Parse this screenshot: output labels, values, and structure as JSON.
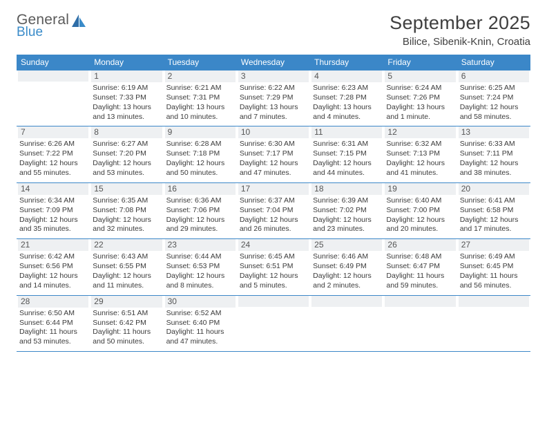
{
  "logo": {
    "general": "General",
    "blue": "Blue"
  },
  "header": {
    "title": "September 2025",
    "location": "Bilice, Sibenik-Knin, Croatia"
  },
  "colors": {
    "header_bg": "#3b87c8",
    "daynum_bg": "#eef0f2",
    "text": "#333333",
    "border": "#3b87c8",
    "logo_gray": "#5a5a5a",
    "logo_blue": "#3a8bc9"
  },
  "weekdays": [
    "Sunday",
    "Monday",
    "Tuesday",
    "Wednesday",
    "Thursday",
    "Friday",
    "Saturday"
  ],
  "weeks": [
    [
      {
        "day": "",
        "sunrise": "",
        "sunset": "",
        "daylight": ""
      },
      {
        "day": "1",
        "sunrise": "Sunrise: 6:19 AM",
        "sunset": "Sunset: 7:33 PM",
        "daylight": "Daylight: 13 hours and 13 minutes."
      },
      {
        "day": "2",
        "sunrise": "Sunrise: 6:21 AM",
        "sunset": "Sunset: 7:31 PM",
        "daylight": "Daylight: 13 hours and 10 minutes."
      },
      {
        "day": "3",
        "sunrise": "Sunrise: 6:22 AM",
        "sunset": "Sunset: 7:29 PM",
        "daylight": "Daylight: 13 hours and 7 minutes."
      },
      {
        "day": "4",
        "sunrise": "Sunrise: 6:23 AM",
        "sunset": "Sunset: 7:28 PM",
        "daylight": "Daylight: 13 hours and 4 minutes."
      },
      {
        "day": "5",
        "sunrise": "Sunrise: 6:24 AM",
        "sunset": "Sunset: 7:26 PM",
        "daylight": "Daylight: 13 hours and 1 minute."
      },
      {
        "day": "6",
        "sunrise": "Sunrise: 6:25 AM",
        "sunset": "Sunset: 7:24 PM",
        "daylight": "Daylight: 12 hours and 58 minutes."
      }
    ],
    [
      {
        "day": "7",
        "sunrise": "Sunrise: 6:26 AM",
        "sunset": "Sunset: 7:22 PM",
        "daylight": "Daylight: 12 hours and 55 minutes."
      },
      {
        "day": "8",
        "sunrise": "Sunrise: 6:27 AM",
        "sunset": "Sunset: 7:20 PM",
        "daylight": "Daylight: 12 hours and 53 minutes."
      },
      {
        "day": "9",
        "sunrise": "Sunrise: 6:28 AM",
        "sunset": "Sunset: 7:18 PM",
        "daylight": "Daylight: 12 hours and 50 minutes."
      },
      {
        "day": "10",
        "sunrise": "Sunrise: 6:30 AM",
        "sunset": "Sunset: 7:17 PM",
        "daylight": "Daylight: 12 hours and 47 minutes."
      },
      {
        "day": "11",
        "sunrise": "Sunrise: 6:31 AM",
        "sunset": "Sunset: 7:15 PM",
        "daylight": "Daylight: 12 hours and 44 minutes."
      },
      {
        "day": "12",
        "sunrise": "Sunrise: 6:32 AM",
        "sunset": "Sunset: 7:13 PM",
        "daylight": "Daylight: 12 hours and 41 minutes."
      },
      {
        "day": "13",
        "sunrise": "Sunrise: 6:33 AM",
        "sunset": "Sunset: 7:11 PM",
        "daylight": "Daylight: 12 hours and 38 minutes."
      }
    ],
    [
      {
        "day": "14",
        "sunrise": "Sunrise: 6:34 AM",
        "sunset": "Sunset: 7:09 PM",
        "daylight": "Daylight: 12 hours and 35 minutes."
      },
      {
        "day": "15",
        "sunrise": "Sunrise: 6:35 AM",
        "sunset": "Sunset: 7:08 PM",
        "daylight": "Daylight: 12 hours and 32 minutes."
      },
      {
        "day": "16",
        "sunrise": "Sunrise: 6:36 AM",
        "sunset": "Sunset: 7:06 PM",
        "daylight": "Daylight: 12 hours and 29 minutes."
      },
      {
        "day": "17",
        "sunrise": "Sunrise: 6:37 AM",
        "sunset": "Sunset: 7:04 PM",
        "daylight": "Daylight: 12 hours and 26 minutes."
      },
      {
        "day": "18",
        "sunrise": "Sunrise: 6:39 AM",
        "sunset": "Sunset: 7:02 PM",
        "daylight": "Daylight: 12 hours and 23 minutes."
      },
      {
        "day": "19",
        "sunrise": "Sunrise: 6:40 AM",
        "sunset": "Sunset: 7:00 PM",
        "daylight": "Daylight: 12 hours and 20 minutes."
      },
      {
        "day": "20",
        "sunrise": "Sunrise: 6:41 AM",
        "sunset": "Sunset: 6:58 PM",
        "daylight": "Daylight: 12 hours and 17 minutes."
      }
    ],
    [
      {
        "day": "21",
        "sunrise": "Sunrise: 6:42 AM",
        "sunset": "Sunset: 6:56 PM",
        "daylight": "Daylight: 12 hours and 14 minutes."
      },
      {
        "day": "22",
        "sunrise": "Sunrise: 6:43 AM",
        "sunset": "Sunset: 6:55 PM",
        "daylight": "Daylight: 12 hours and 11 minutes."
      },
      {
        "day": "23",
        "sunrise": "Sunrise: 6:44 AM",
        "sunset": "Sunset: 6:53 PM",
        "daylight": "Daylight: 12 hours and 8 minutes."
      },
      {
        "day": "24",
        "sunrise": "Sunrise: 6:45 AM",
        "sunset": "Sunset: 6:51 PM",
        "daylight": "Daylight: 12 hours and 5 minutes."
      },
      {
        "day": "25",
        "sunrise": "Sunrise: 6:46 AM",
        "sunset": "Sunset: 6:49 PM",
        "daylight": "Daylight: 12 hours and 2 minutes."
      },
      {
        "day": "26",
        "sunrise": "Sunrise: 6:48 AM",
        "sunset": "Sunset: 6:47 PM",
        "daylight": "Daylight: 11 hours and 59 minutes."
      },
      {
        "day": "27",
        "sunrise": "Sunrise: 6:49 AM",
        "sunset": "Sunset: 6:45 PM",
        "daylight": "Daylight: 11 hours and 56 minutes."
      }
    ],
    [
      {
        "day": "28",
        "sunrise": "Sunrise: 6:50 AM",
        "sunset": "Sunset: 6:44 PM",
        "daylight": "Daylight: 11 hours and 53 minutes."
      },
      {
        "day": "29",
        "sunrise": "Sunrise: 6:51 AM",
        "sunset": "Sunset: 6:42 PM",
        "daylight": "Daylight: 11 hours and 50 minutes."
      },
      {
        "day": "30",
        "sunrise": "Sunrise: 6:52 AM",
        "sunset": "Sunset: 6:40 PM",
        "daylight": "Daylight: 11 hours and 47 minutes."
      },
      {
        "day": "",
        "sunrise": "",
        "sunset": "",
        "daylight": ""
      },
      {
        "day": "",
        "sunrise": "",
        "sunset": "",
        "daylight": ""
      },
      {
        "day": "",
        "sunrise": "",
        "sunset": "",
        "daylight": ""
      },
      {
        "day": "",
        "sunrise": "",
        "sunset": "",
        "daylight": ""
      }
    ]
  ]
}
